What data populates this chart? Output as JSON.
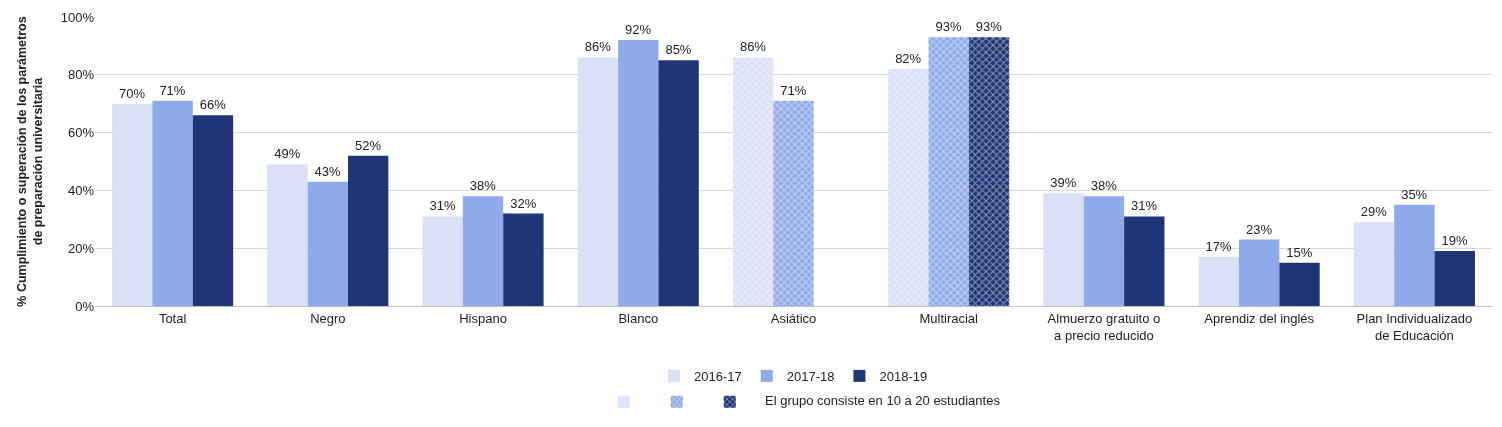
{
  "chart_data": {
    "type": "bar",
    "ylabel": "% Cumplimiento o superación de los parámetros de preparación universitaria",
    "categories": [
      "Total",
      "Negro",
      "Hispano",
      "Blanco",
      "Asiático",
      "Multiracial",
      "Almuerzo gratuito o a precio reducido",
      "Aprendiz del inglés",
      "Plan Individualizado de Educación"
    ],
    "series": [
      {
        "name": "2016-17",
        "color": "#dae1f6",
        "values": [
          70,
          49,
          31,
          86,
          null,
          null,
          39,
          17,
          29
        ],
        "value_labels": [
          "70%",
          "49%",
          "31%",
          "86%",
          null,
          null,
          "39%",
          "17%",
          "29%"
        ]
      },
      {
        "name": "2017-18",
        "color": "#8faae9",
        "values": [
          71,
          43,
          38,
          92,
          null,
          null,
          38,
          23,
          35
        ],
        "value_labels": [
          "71%",
          "43%",
          "38%",
          "92%",
          null,
          null,
          "38%",
          "23%",
          "35%"
        ]
      },
      {
        "name": "2018-19",
        "color": "#1f3576",
        "values": [
          66,
          52,
          32,
          85,
          null,
          null,
          31,
          15,
          19
        ],
        "value_labels": [
          "66%",
          "52%",
          "32%",
          "85%",
          null,
          null,
          "31%",
          "15%",
          "19%"
        ]
      },
      {
        "color": "#dae1f6",
        "marker": "cross",
        "values": [
          null,
          null,
          null,
          null,
          86,
          82,
          null,
          null,
          null
        ],
        "value_labels": [
          null,
          null,
          null,
          null,
          "86%",
          "82%",
          null,
          null,
          null
        ]
      },
      {
        "color": "#8faae9",
        "marker": "cross",
        "values": [
          null,
          null,
          null,
          null,
          71,
          93,
          null,
          null,
          null
        ],
        "value_labels": [
          null,
          null,
          null,
          null,
          "71%",
          "93%",
          null,
          null,
          null
        ]
      },
      {
        "color": "#1f3576",
        "marker": "cross",
        "values": [
          null,
          null,
          null,
          null,
          null,
          93,
          null,
          null,
          null
        ],
        "value_labels": [
          null,
          null,
          null,
          null,
          null,
          "93%",
          null,
          null,
          null
        ]
      }
    ],
    "annotations": [
      "El grupo consiste en 10 a 20 estudiantes"
    ],
    "ylim": [
      0,
      100
    ],
    "yticks": [
      {
        "value": 0,
        "label": "0%"
      },
      {
        "value": 20,
        "label": "20%"
      },
      {
        "value": 40,
        "label": "40%"
      },
      {
        "value": 60,
        "label": "60%"
      },
      {
        "value": 80,
        "label": "80%"
      },
      {
        "value": 100,
        "label": "100%"
      }
    ],
    "grid": "y",
    "legend": "bottom"
  }
}
